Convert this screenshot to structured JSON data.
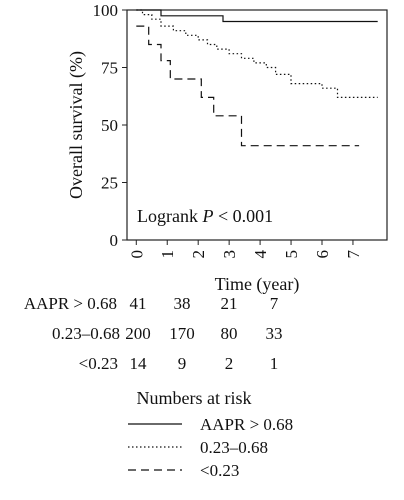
{
  "chart_data": {
    "type": "line",
    "step": true,
    "ylabel": "Overall survival (%)",
    "xlabel": "Time (year)",
    "xlim": [
      -0.3,
      8.1
    ],
    "ylim": [
      0,
      100
    ],
    "xticks": [
      0,
      1,
      2,
      3,
      4,
      5,
      6,
      7
    ],
    "yticks": [
      0,
      25,
      50,
      75,
      100
    ],
    "annotation": {
      "prefix": "Logrank ",
      "italic": "P",
      "suffix": " < 0.001"
    },
    "series": [
      {
        "name": "AAPR > 0.68",
        "style": "solid",
        "points": [
          [
            0,
            100
          ],
          [
            0.8,
            100
          ],
          [
            0.8,
            97.5
          ],
          [
            2.8,
            97.5
          ],
          [
            2.8,
            95
          ],
          [
            7.8,
            95
          ]
        ]
      },
      {
        "name": "0.23–0.68",
        "style": "dotted",
        "points": [
          [
            0,
            100
          ],
          [
            0.2,
            100
          ],
          [
            0.2,
            98
          ],
          [
            0.5,
            98
          ],
          [
            0.5,
            96
          ],
          [
            0.8,
            96
          ],
          [
            0.8,
            93
          ],
          [
            1.2,
            93
          ],
          [
            1.2,
            91
          ],
          [
            1.6,
            91
          ],
          [
            1.6,
            89
          ],
          [
            2.0,
            89
          ],
          [
            2.0,
            87
          ],
          [
            2.3,
            87
          ],
          [
            2.3,
            85
          ],
          [
            2.6,
            85
          ],
          [
            2.6,
            83
          ],
          [
            3.0,
            83
          ],
          [
            3.0,
            81
          ],
          [
            3.4,
            81
          ],
          [
            3.4,
            79
          ],
          [
            3.8,
            79
          ],
          [
            3.8,
            77
          ],
          [
            4.2,
            77
          ],
          [
            4.2,
            75
          ],
          [
            4.5,
            75
          ],
          [
            4.5,
            72
          ],
          [
            5.0,
            72
          ],
          [
            5.0,
            68
          ],
          [
            6.0,
            68
          ],
          [
            6.0,
            66
          ],
          [
            6.5,
            66
          ],
          [
            6.5,
            62
          ],
          [
            7.8,
            62
          ]
        ]
      },
      {
        "name": "<0.23",
        "style": "dashed",
        "points": [
          [
            0,
            93
          ],
          [
            0.4,
            93
          ],
          [
            0.4,
            85
          ],
          [
            0.8,
            85
          ],
          [
            0.8,
            78
          ],
          [
            1.1,
            78
          ],
          [
            1.1,
            70
          ],
          [
            2.1,
            70
          ],
          [
            2.1,
            62
          ],
          [
            2.5,
            62
          ],
          [
            2.5,
            54
          ],
          [
            3.4,
            54
          ],
          [
            3.4,
            41
          ],
          [
            7.2,
            41
          ]
        ]
      }
    ]
  },
  "risk_table": {
    "title": "Numbers at risk",
    "rows": [
      {
        "label": "AAPR > 0.68",
        "values": [
          "41",
          "38",
          "21",
          "7"
        ]
      },
      {
        "label": "0.23–0.68",
        "values": [
          "200",
          "170",
          "80",
          "33"
        ]
      },
      {
        "label": "<0.23",
        "values": [
          "14",
          "9",
          "2",
          "1"
        ]
      }
    ]
  }
}
